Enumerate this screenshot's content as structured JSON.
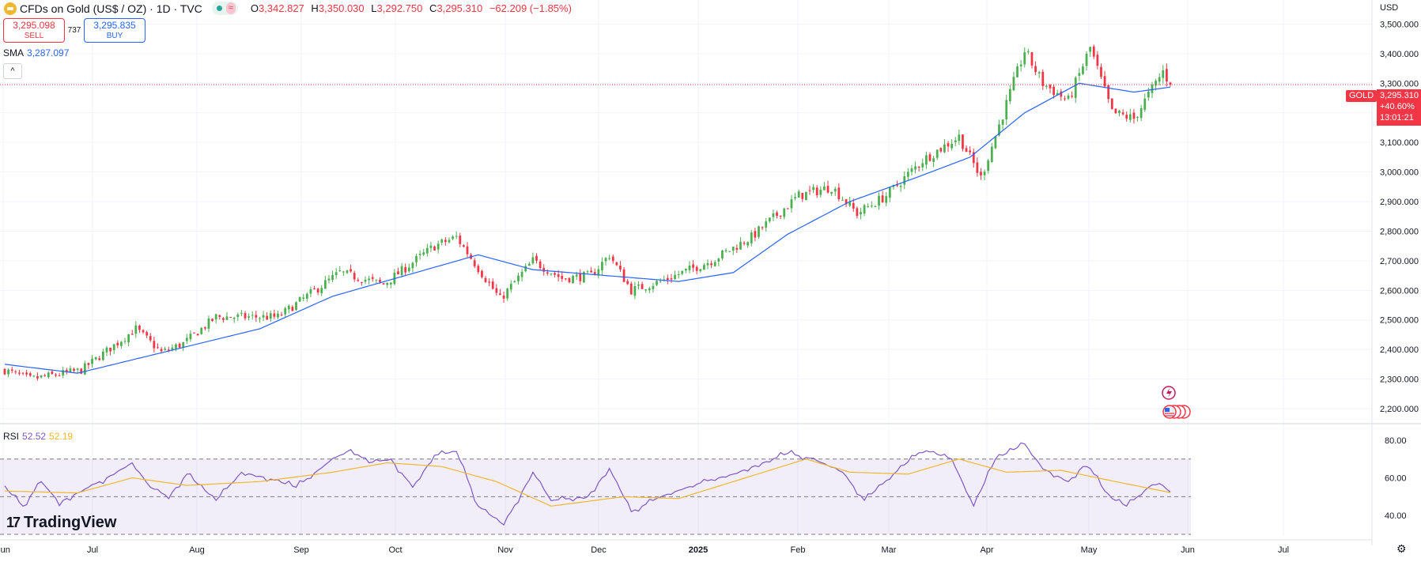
{
  "header": {
    "symbol": "CFDs on Gold (US$ / OZ) · 1D · TVC",
    "open_label": "O",
    "open": "3,342.827",
    "high_label": "H",
    "high": "3,350.030",
    "low_label": "L",
    "low": "3,292.750",
    "close_label": "C",
    "close": "3,295.310",
    "change": "−62.209 (−1.85%)",
    "waves_glyph": "≈"
  },
  "trade": {
    "sell_price": "3,295.098",
    "sell_label": "SELL",
    "spread": "737",
    "buy_price": "3,295.835",
    "buy_label": "BUY"
  },
  "sma": {
    "label": "SMA",
    "value": "3,287.097"
  },
  "collapse_glyph": "^",
  "rsi": {
    "label": "RSI",
    "value": "52.52",
    "ma_value": "52.19"
  },
  "price_scale": {
    "currency": "USD",
    "tag": "GOLD",
    "last_price": "3,295.310",
    "pct": "+40.60%",
    "countdown": "13:01:21"
  },
  "branding": {
    "logo_text": "TradingView",
    "logo_mark": "17"
  },
  "settings_glyph": "⚙",
  "colors": {
    "up": "#4caf50",
    "down": "#f23645",
    "sma": "#2962ff",
    "rsi": "#7e57c2",
    "rsi_ma": "#f0b72f"
  },
  "chart_data": {
    "type": "candlestick",
    "title": "CFDs on Gold (US$ / OZ) · 1D · TVC",
    "price_ylim": [
      2160,
      3560
    ],
    "price_ticks": [
      2200,
      2300,
      2400,
      2500,
      2600,
      2700,
      2800,
      2900,
      3000,
      3100,
      3200,
      3300,
      3400,
      3500
    ],
    "price_tick_labels": [
      "2,200.000",
      "2,300.000",
      "2,400.000",
      "2,500.000",
      "2,600.000",
      "2,700.000",
      "2,800.000",
      "2,900.000",
      "3,000.000",
      "3,100.000",
      "3,200.000",
      "3,300.000",
      "3,400.000",
      "3,500.000"
    ],
    "last_price": 3295.31,
    "x_axis_labels": [
      "Jun",
      "Jul",
      "Aug",
      "Sep",
      "Oct",
      "Nov",
      "Dec",
      "2025",
      "Feb",
      "Mar",
      "Apr",
      "May",
      "Jun",
      "Jul"
    ],
    "anchors": [
      {
        "t": 0,
        "p": 2330
      },
      {
        "t": 7,
        "p": 2300
      },
      {
        "t": 21,
        "p": 2330
      },
      {
        "t": 36,
        "p": 2470
      },
      {
        "t": 43,
        "p": 2390
      },
      {
        "t": 49,
        "p": 2420
      },
      {
        "t": 58,
        "p": 2510
      },
      {
        "t": 75,
        "p": 2510
      },
      {
        "t": 92,
        "p": 2660
      },
      {
        "t": 104,
        "p": 2620
      },
      {
        "t": 118,
        "p": 2750
      },
      {
        "t": 124,
        "p": 2780
      },
      {
        "t": 136,
        "p": 2570
      },
      {
        "t": 145,
        "p": 2700
      },
      {
        "t": 153,
        "p": 2640
      },
      {
        "t": 161,
        "p": 2650
      },
      {
        "t": 166,
        "p": 2720
      },
      {
        "t": 172,
        "p": 2600
      },
      {
        "t": 180,
        "p": 2630
      },
      {
        "t": 194,
        "p": 2700
      },
      {
        "t": 205,
        "p": 2780
      },
      {
        "t": 218,
        "p": 2920
      },
      {
        "t": 227,
        "p": 2950
      },
      {
        "t": 234,
        "p": 2860
      },
      {
        "t": 242,
        "p": 2920
      },
      {
        "t": 252,
        "p": 3040
      },
      {
        "t": 262,
        "p": 3120
      },
      {
        "t": 268,
        "p": 2980
      },
      {
        "t": 275,
        "p": 3230
      },
      {
        "t": 280,
        "p": 3410
      },
      {
        "t": 285,
        "p": 3300
      },
      {
        "t": 292,
        "p": 3240
      },
      {
        "t": 298,
        "p": 3420
      },
      {
        "t": 304,
        "p": 3200
      },
      {
        "t": 310,
        "p": 3180
      },
      {
        "t": 318,
        "p": 3340
      },
      {
        "t": 320,
        "p": 3295.31
      }
    ],
    "sma_anchors": [
      {
        "t": 0,
        "p": 2350
      },
      {
        "t": 20,
        "p": 2320
      },
      {
        "t": 40,
        "p": 2380
      },
      {
        "t": 70,
        "p": 2470
      },
      {
        "t": 90,
        "p": 2580
      },
      {
        "t": 110,
        "p": 2650
      },
      {
        "t": 130,
        "p": 2720
      },
      {
        "t": 145,
        "p": 2670
      },
      {
        "t": 165,
        "p": 2650
      },
      {
        "t": 185,
        "p": 2630
      },
      {
        "t": 200,
        "p": 2660
      },
      {
        "t": 215,
        "p": 2790
      },
      {
        "t": 232,
        "p": 2900
      },
      {
        "t": 250,
        "p": 2980
      },
      {
        "t": 265,
        "p": 3050
      },
      {
        "t": 280,
        "p": 3200
      },
      {
        "t": 295,
        "p": 3300
      },
      {
        "t": 310,
        "p": 3270
      },
      {
        "t": 320,
        "p": 3287
      }
    ],
    "rsi_ylim": [
      30,
      85
    ],
    "rsi_ticks": [
      40,
      60,
      80
    ],
    "rsi_tick_labels": [
      "40.00",
      "60.00",
      "80.00"
    ],
    "rsi_band": [
      30,
      70
    ],
    "rsi_mid": 50,
    "rsi_anchors": [
      {
        "t": 0,
        "p": 55
      },
      {
        "t": 5,
        "p": 45
      },
      {
        "t": 10,
        "p": 58
      },
      {
        "t": 15,
        "p": 47
      },
      {
        "t": 20,
        "p": 52
      },
      {
        "t": 28,
        "p": 60
      },
      {
        "t": 35,
        "p": 68
      },
      {
        "t": 40,
        "p": 55
      },
      {
        "t": 45,
        "p": 50
      },
      {
        "t": 50,
        "p": 62
      },
      {
        "t": 58,
        "p": 48
      },
      {
        "t": 65,
        "p": 63
      },
      {
        "t": 72,
        "p": 60
      },
      {
        "t": 80,
        "p": 55
      },
      {
        "t": 90,
        "p": 70
      },
      {
        "t": 95,
        "p": 75
      },
      {
        "t": 100,
        "p": 68
      },
      {
        "t": 106,
        "p": 70
      },
      {
        "t": 112,
        "p": 55
      },
      {
        "t": 118,
        "p": 72
      },
      {
        "t": 124,
        "p": 74
      },
      {
        "t": 130,
        "p": 45
      },
      {
        "t": 137,
        "p": 35
      },
      {
        "t": 145,
        "p": 63
      },
      {
        "t": 150,
        "p": 48
      },
      {
        "t": 160,
        "p": 50
      },
      {
        "t": 166,
        "p": 65
      },
      {
        "t": 172,
        "p": 42
      },
      {
        "t": 180,
        "p": 50
      },
      {
        "t": 192,
        "p": 58
      },
      {
        "t": 200,
        "p": 62
      },
      {
        "t": 215,
        "p": 73
      },
      {
        "t": 222,
        "p": 70
      },
      {
        "t": 230,
        "p": 63
      },
      {
        "t": 236,
        "p": 48
      },
      {
        "t": 244,
        "p": 62
      },
      {
        "t": 252,
        "p": 75
      },
      {
        "t": 260,
        "p": 70
      },
      {
        "t": 266,
        "p": 45
      },
      {
        "t": 272,
        "p": 70
      },
      {
        "t": 280,
        "p": 78
      },
      {
        "t": 285,
        "p": 65
      },
      {
        "t": 292,
        "p": 58
      },
      {
        "t": 297,
        "p": 68
      },
      {
        "t": 303,
        "p": 50
      },
      {
        "t": 308,
        "p": 45
      },
      {
        "t": 314,
        "p": 55
      },
      {
        "t": 317,
        "p": 57
      },
      {
        "t": 320,
        "p": 52.52
      }
    ],
    "rsi_ma_anchors": [
      {
        "t": 0,
        "p": 53
      },
      {
        "t": 20,
        "p": 52
      },
      {
        "t": 35,
        "p": 60
      },
      {
        "t": 50,
        "p": 56
      },
      {
        "t": 70,
        "p": 58
      },
      {
        "t": 90,
        "p": 63
      },
      {
        "t": 105,
        "p": 68
      },
      {
        "t": 120,
        "p": 66
      },
      {
        "t": 135,
        "p": 58
      },
      {
        "t": 150,
        "p": 45
      },
      {
        "t": 170,
        "p": 50
      },
      {
        "t": 185,
        "p": 49
      },
      {
        "t": 200,
        "p": 58
      },
      {
        "t": 220,
        "p": 70
      },
      {
        "t": 232,
        "p": 63
      },
      {
        "t": 248,
        "p": 62
      },
      {
        "t": 262,
        "p": 70
      },
      {
        "t": 275,
        "p": 63
      },
      {
        "t": 290,
        "p": 64
      },
      {
        "t": 305,
        "p": 58
      },
      {
        "t": 320,
        "p": 52.19
      }
    ],
    "days_total": 320
  }
}
